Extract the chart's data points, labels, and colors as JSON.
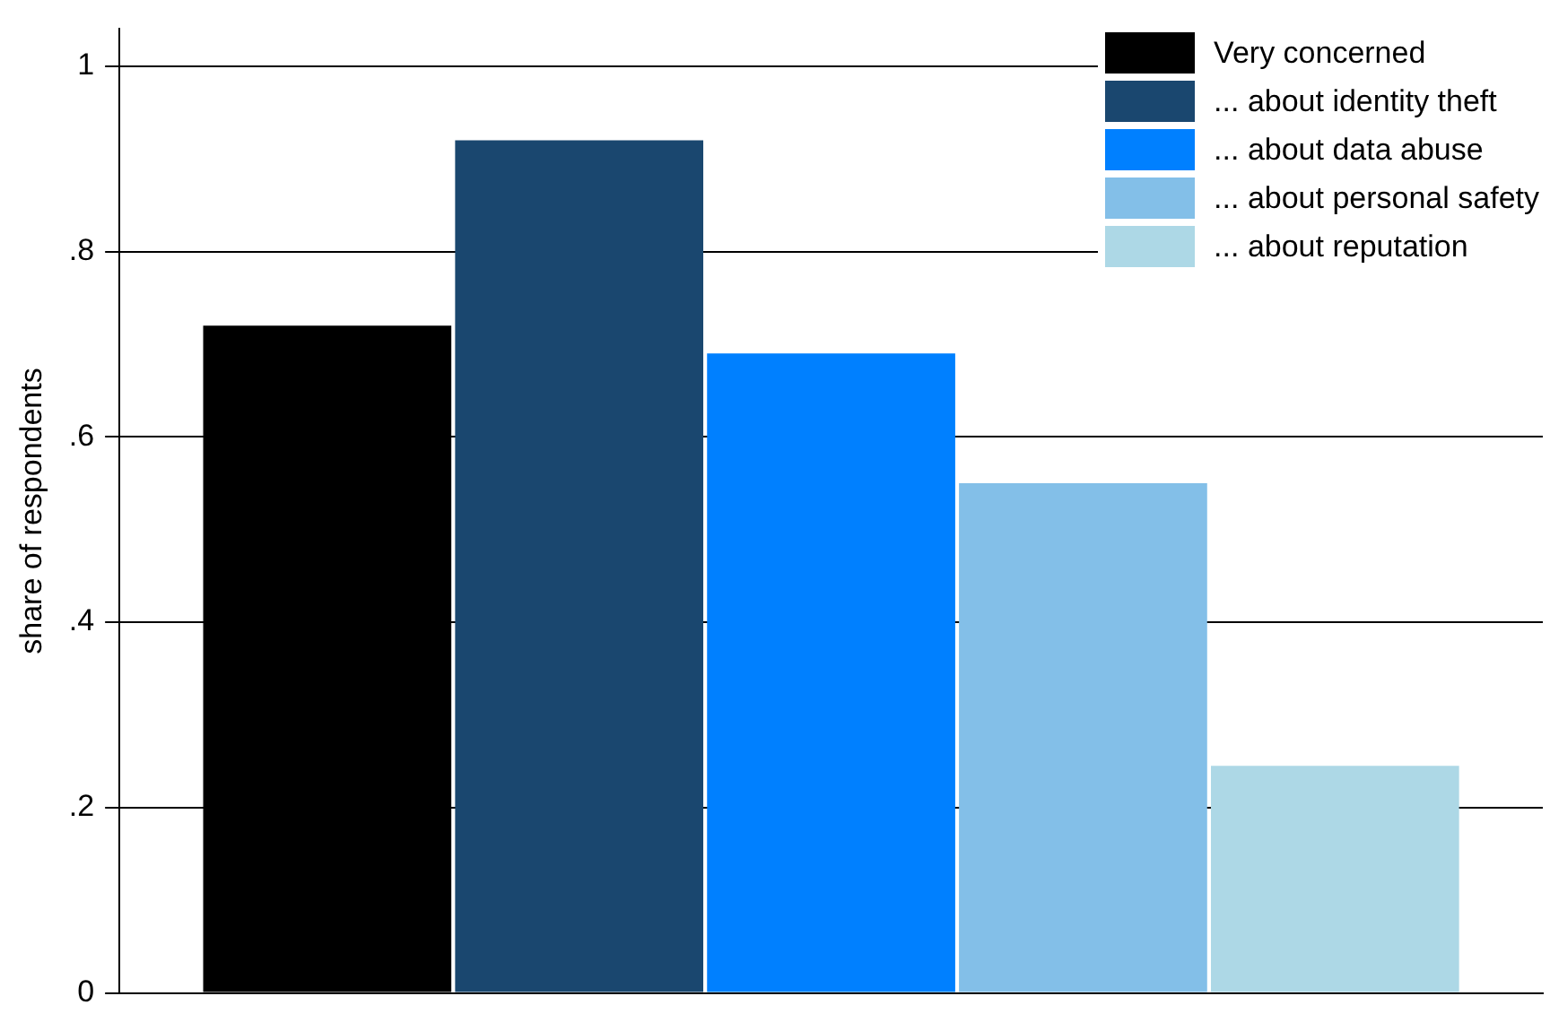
{
  "chart_data": {
    "type": "bar",
    "ylabel": "share of respondents",
    "categories": [
      null
    ],
    "series": [
      {
        "name": "Very concerned",
        "color": "#000000",
        "values": [
          0.72
        ]
      },
      {
        "name": "... about identity theft",
        "color": "#1a476f",
        "values": [
          0.92
        ]
      },
      {
        "name": "... about data abuse",
        "color": "#0080ff",
        "values": [
          0.69
        ]
      },
      {
        "name": "... about personal safety",
        "color": "#83bfe8",
        "values": [
          0.55
        ]
      },
      {
        "name": "... about reputation",
        "color": "#add8e6",
        "values": [
          0.245
        ]
      }
    ],
    "ylim": [
      0,
      1.04
    ],
    "yticks": [
      0,
      {
        "value": 0.2,
        "label": ".2"
      },
      {
        "value": 0.4,
        "label": ".4"
      },
      {
        "value": 0.6,
        "label": ".6"
      },
      {
        "value": 0.8,
        "label": ".8"
      },
      1
    ],
    "grid": "y",
    "legend": "top right",
    "tick_labels": "y"
  }
}
